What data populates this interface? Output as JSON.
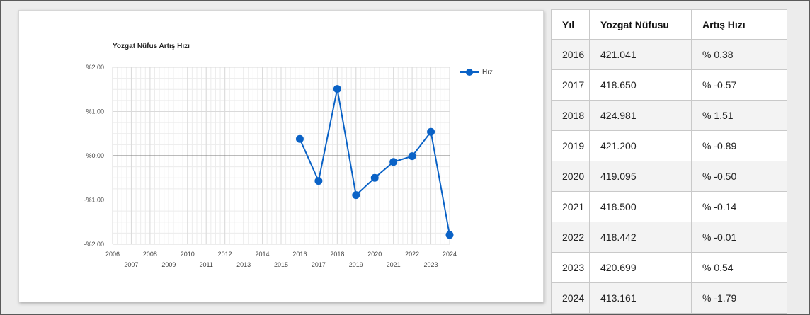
{
  "chart_data": {
    "type": "line",
    "title": "Yozgat Nüfus Artış Hızı",
    "xlabel": "",
    "ylabel": "",
    "xlim": [
      2006,
      2024
    ],
    "ylim": [
      -2,
      2
    ],
    "x_ticks_upper": [
      "2006",
      "2008",
      "2010",
      "2012",
      "2014",
      "2016",
      "2018",
      "2020",
      "2022",
      "2024"
    ],
    "x_ticks_lower": [
      "2007",
      "2009",
      "2011",
      "2013",
      "2015",
      "2017",
      "2019",
      "2021",
      "2023"
    ],
    "y_ticks": [
      {
        "value": 2,
        "label": "%2.00"
      },
      {
        "value": 1,
        "label": "%1.00"
      },
      {
        "value": 0,
        "label": "%0.00"
      },
      {
        "value": -1,
        "label": "-%1.00"
      },
      {
        "value": -2,
        "label": "-%2.00"
      }
    ],
    "grid": true,
    "legend_position": "top-right",
    "series": [
      {
        "name": "Hız",
        "color": "#0a62c6",
        "x": [
          2016,
          2017,
          2018,
          2019,
          2020,
          2021,
          2022,
          2023,
          2024
        ],
        "values": [
          0.38,
          -0.57,
          1.51,
          -0.89,
          -0.5,
          -0.14,
          -0.01,
          0.54,
          -1.79
        ]
      }
    ]
  },
  "table": {
    "headers": [
      "Yıl",
      "Yozgat Nüfusu",
      "Artış Hızı"
    ],
    "rows": [
      [
        "2016",
        "421.041",
        "% 0.38"
      ],
      [
        "2017",
        "418.650",
        "% -0.57"
      ],
      [
        "2018",
        "424.981",
        "% 1.51"
      ],
      [
        "2019",
        "421.200",
        "% -0.89"
      ],
      [
        "2020",
        "419.095",
        "% -0.50"
      ],
      [
        "2021",
        "418.500",
        "% -0.14"
      ],
      [
        "2022",
        "418.442",
        "% -0.01"
      ],
      [
        "2023",
        "420.699",
        "% 0.54"
      ],
      [
        "2024",
        "413.161",
        "% -1.79"
      ]
    ]
  }
}
